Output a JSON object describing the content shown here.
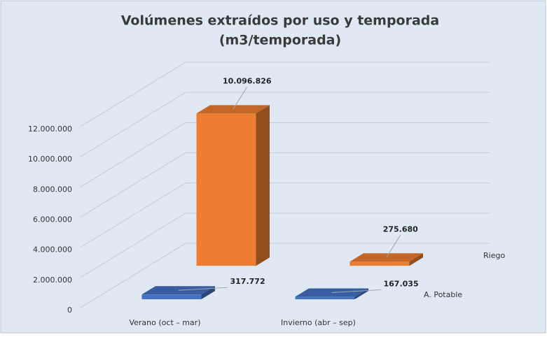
{
  "chart_data": {
    "type": "bar3d",
    "title": "Volúmenes extraídos por uso y temporada",
    "subtitle": "(m3/temporada)",
    "categories": [
      "Verano (oct – mar)",
      "Invierno (abr – sep)"
    ],
    "series": [
      {
        "name": "A. Potable",
        "color": "#4472c4",
        "values": [
          317772,
          167035
        ],
        "value_labels": [
          "317.772",
          "167.035"
        ]
      },
      {
        "name": "Riego",
        "color": "#ed7d31",
        "values": [
          10096826,
          275680
        ],
        "value_labels": [
          "10.096.826",
          "275.680"
        ]
      }
    ],
    "ylim": [
      0,
      12000000
    ],
    "yticks": [
      0,
      {
        "value": 2000000,
        "label": "2.000.000"
      },
      {
        "value": 4000000,
        "label": "4.000.000"
      },
      {
        "value": 6000000,
        "label": "6.000.000"
      },
      {
        "value": 8000000,
        "label": "8.000.000"
      },
      {
        "value": 10000000,
        "label": "10.000.000"
      },
      {
        "value": 12000000,
        "label": "12.000.000"
      }
    ],
    "grid": true
  }
}
